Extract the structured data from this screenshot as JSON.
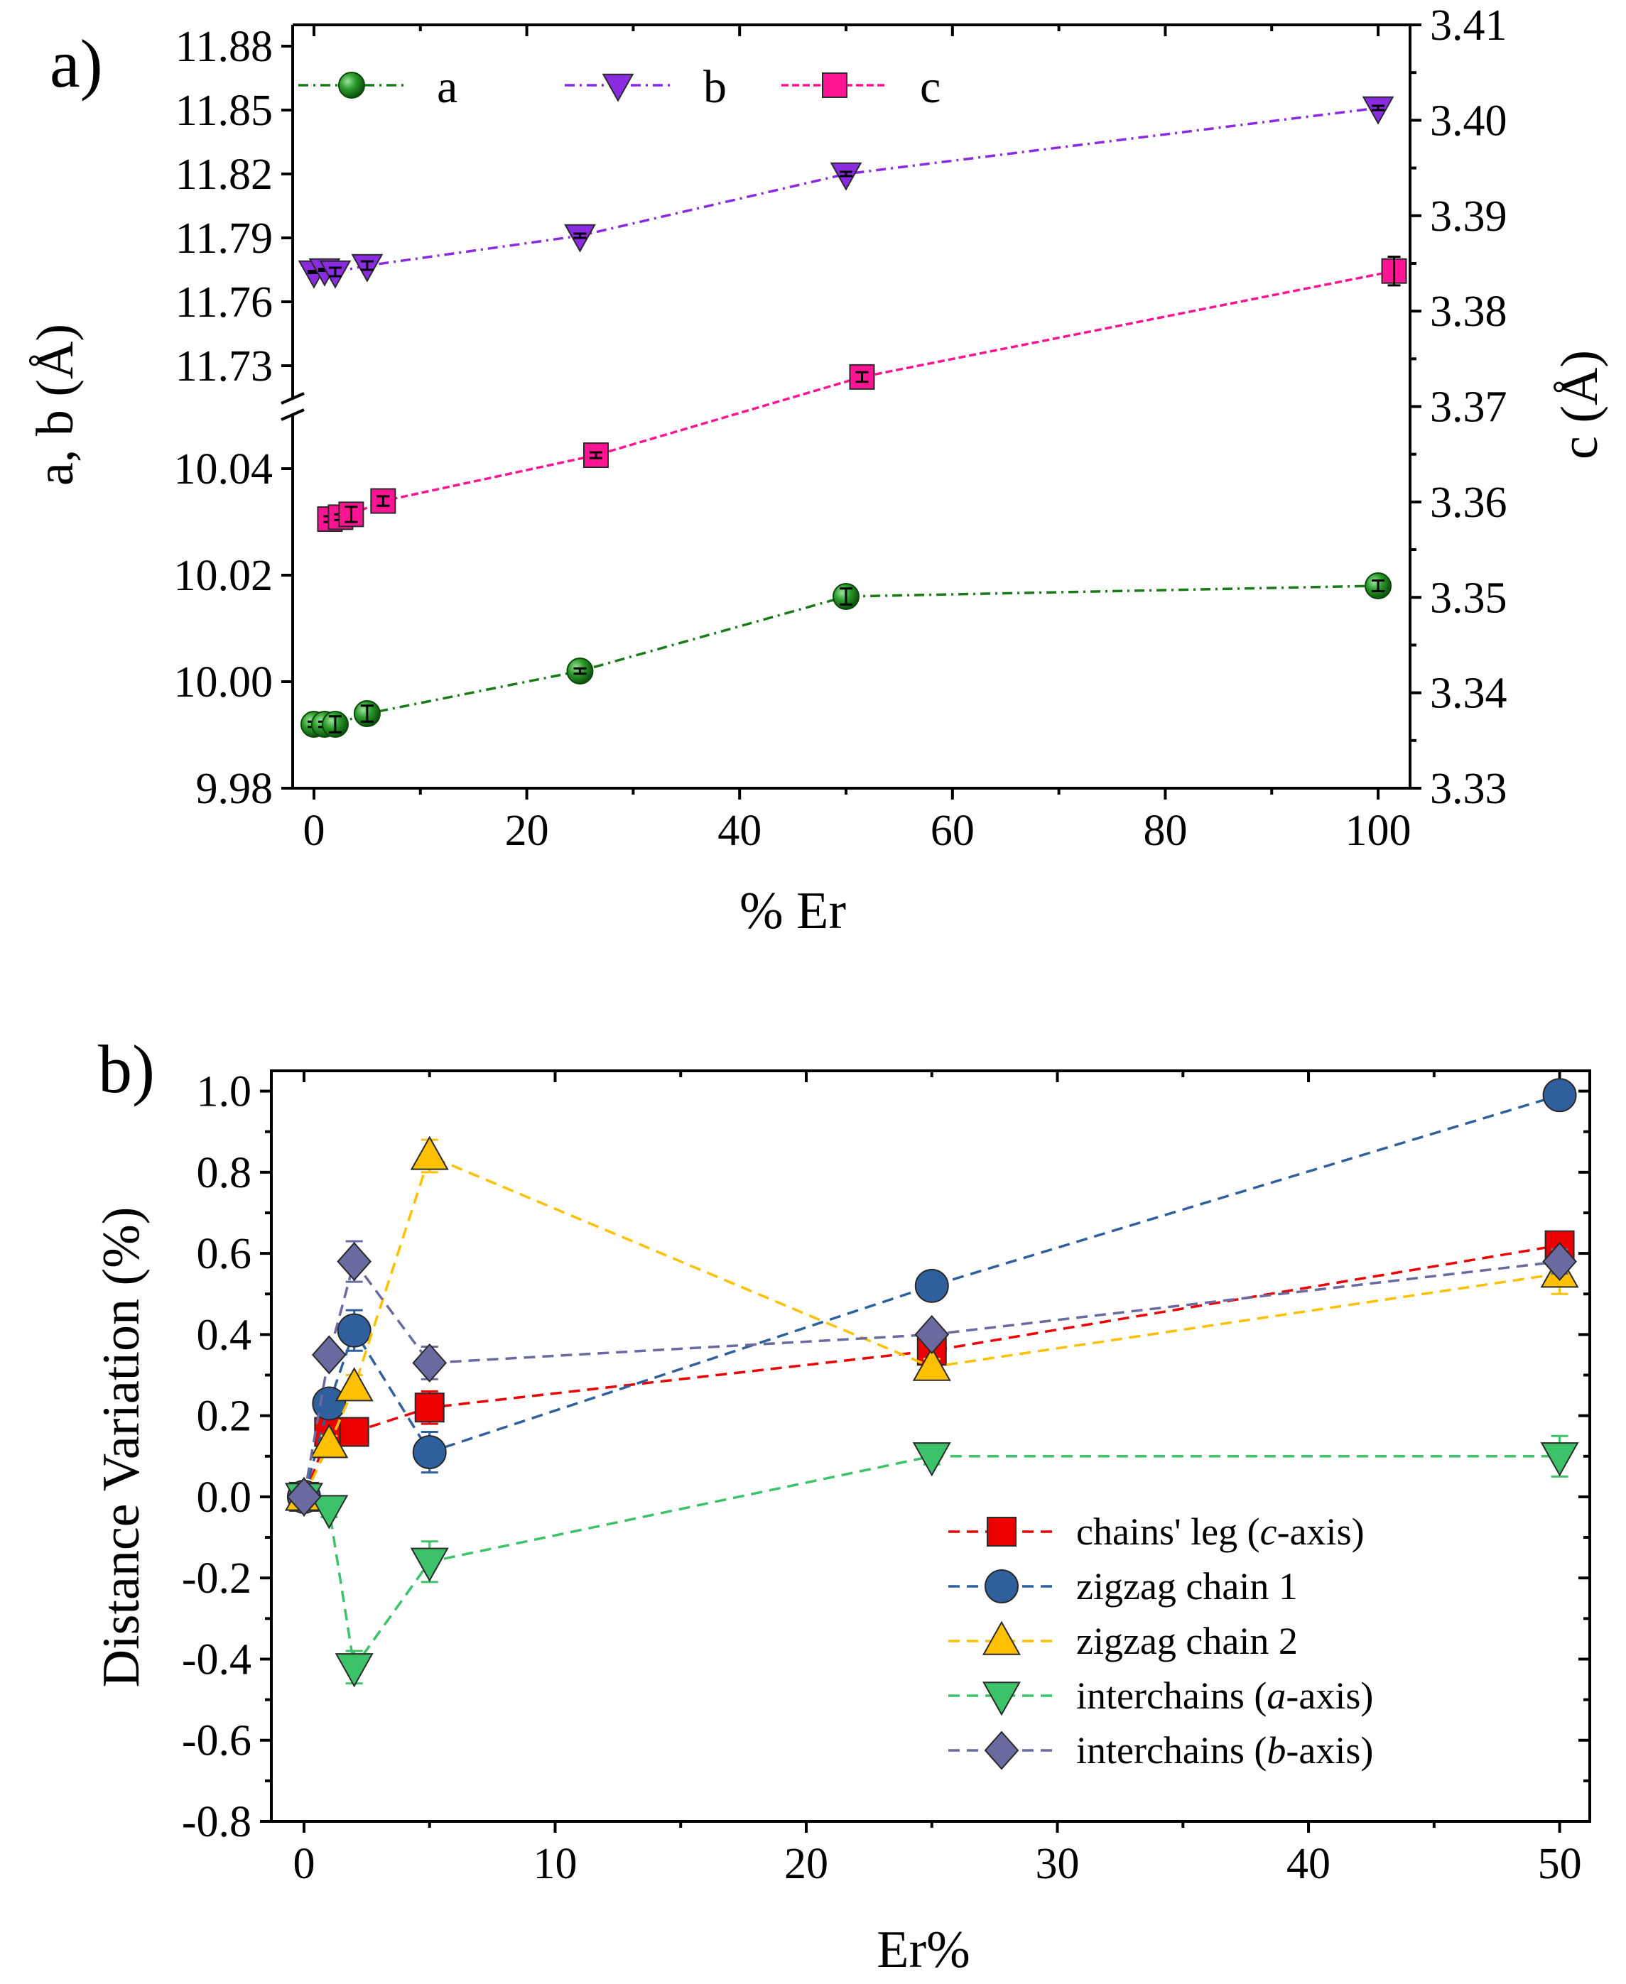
{
  "chart_data": [
    {
      "type": "scatter",
      "panel_label": "a)",
      "xlabel": "% Er",
      "ylabel_left": "a, b (Å)",
      "ylabel_right": "c (Å)",
      "x_ticks": [
        "0",
        "20",
        "40",
        "60",
        "80",
        "100"
      ],
      "xlim": [
        -2,
        103
      ],
      "left_axis_broken": true,
      "y_lower_segment": {
        "range": [
          9.98,
          10.05
        ],
        "ticks": [
          "9.98",
          "10.00",
          "10.02",
          "10.04"
        ]
      },
      "y_upper_segment": {
        "range": [
          11.715,
          11.89
        ],
        "ticks": [
          "11.73",
          "11.76",
          "11.79",
          "11.82",
          "11.85",
          "11.88"
        ]
      },
      "y_right": {
        "range": [
          3.33,
          3.41
        ],
        "ticks": [
          "3.33",
          "3.34",
          "3.35",
          "3.36",
          "3.37",
          "3.38",
          "3.39",
          "3.40",
          "3.41"
        ]
      },
      "series": [
        {
          "name": "a",
          "axis": "left",
          "marker": "sphere",
          "color": "#1a7a1a",
          "line": "dash-dot",
          "x": [
            0,
            1,
            2,
            5,
            25,
            50,
            100
          ],
          "y": [
            9.992,
            9.992,
            9.992,
            9.994,
            10.002,
            10.016,
            10.018
          ],
          "err": [
            0.0005,
            0.0005,
            0.0015,
            0.0015,
            0.0005,
            0.0015,
            0.001
          ]
        },
        {
          "name": "b",
          "axis": "left",
          "marker": "triangle-down",
          "color": "#8a2be2",
          "line": "dash-dot",
          "x": [
            0,
            1,
            2,
            5,
            25,
            50,
            100
          ],
          "y": [
            11.774,
            11.775,
            11.774,
            11.777,
            11.791,
            11.82,
            11.851
          ],
          "err": [
            0.0005,
            0.0005,
            0.002,
            0.002,
            0.001,
            0.001,
            0.001
          ]
        },
        {
          "name": "c",
          "axis": "right",
          "marker": "square",
          "color": "#ff1493",
          "line": "dashed",
          "x": [
            1.5,
            2.5,
            3.5,
            6.5,
            26.5,
            51.5,
            101.5
          ],
          "y": [
            3.3582,
            3.3584,
            3.3587,
            3.3601,
            3.3649,
            3.3731,
            3.3842
          ],
          "err": [
            0.0003,
            0.0003,
            0.0008,
            0.0005,
            0.0003,
            0.0005,
            0.0015
          ]
        }
      ]
    },
    {
      "type": "scatter",
      "panel_label": "b)",
      "xlabel": "Er%",
      "ylabel": "Distance Variation (%)",
      "xlim": [
        -1.3,
        51.2
      ],
      "ylim": [
        -0.8,
        1.05
      ],
      "x_ticks": [
        "0",
        "10",
        "20",
        "30",
        "40",
        "50"
      ],
      "y_ticks": [
        "-0.8",
        "-0.6",
        "-0.4",
        "-0.2",
        "0.0",
        "0.2",
        "0.4",
        "0.6",
        "0.8",
        "1.0"
      ],
      "legend_position": "bottom-right",
      "series": [
        {
          "name": "chains' leg (",
          "name_italic": "c",
          "name_suffix": "-axis)",
          "marker": "square",
          "color": "#ee0000",
          "x": [
            0,
            1,
            2,
            5,
            25,
            50
          ],
          "y": [
            0.0,
            0.16,
            0.16,
            0.22,
            0.36,
            0.62
          ],
          "err": [
            0.02,
            0.02,
            0.02,
            0.04,
            0.02,
            0.02
          ]
        },
        {
          "name": "zigzag chain 1",
          "name_italic": "",
          "name_suffix": "",
          "marker": "circle",
          "color": "#2f5f9c",
          "x": [
            0,
            1,
            2,
            5,
            25,
            50
          ],
          "y": [
            0.0,
            0.23,
            0.41,
            0.11,
            0.52,
            0.99
          ],
          "err": [
            0.02,
            0.02,
            0.05,
            0.05,
            0.02,
            0.03
          ]
        },
        {
          "name": "zigzag chain 2",
          "name_italic": "",
          "name_suffix": "",
          "marker": "triangle-up",
          "color": "#ffc000",
          "x": [
            0,
            1,
            2,
            5,
            25,
            50
          ],
          "y": [
            0.0,
            0.13,
            0.27,
            0.84,
            0.32,
            0.55
          ],
          "err": [
            0.02,
            0.02,
            0.03,
            0.04,
            0.02,
            0.05
          ]
        },
        {
          "name": "interchains (",
          "name_italic": "a",
          "name_suffix": "-axis)",
          "marker": "triangle-down",
          "color": "#3cc36a",
          "x": [
            0,
            1,
            2,
            5,
            25,
            50
          ],
          "y": [
            0.0,
            -0.03,
            -0.42,
            -0.16,
            0.1,
            0.1
          ],
          "err": [
            0.02,
            0.02,
            0.04,
            0.05,
            0.02,
            0.05
          ]
        },
        {
          "name": "interchains (",
          "name_italic": "b",
          "name_suffix": "-axis)",
          "marker": "diamond",
          "color": "#6a6aa0",
          "x": [
            0,
            1,
            2,
            5,
            25,
            50
          ],
          "y": [
            0.0,
            0.35,
            0.58,
            0.33,
            0.4,
            0.58
          ],
          "err": [
            0.02,
            0.02,
            0.05,
            0.04,
            0.02,
            0.03
          ]
        }
      ]
    }
  ]
}
